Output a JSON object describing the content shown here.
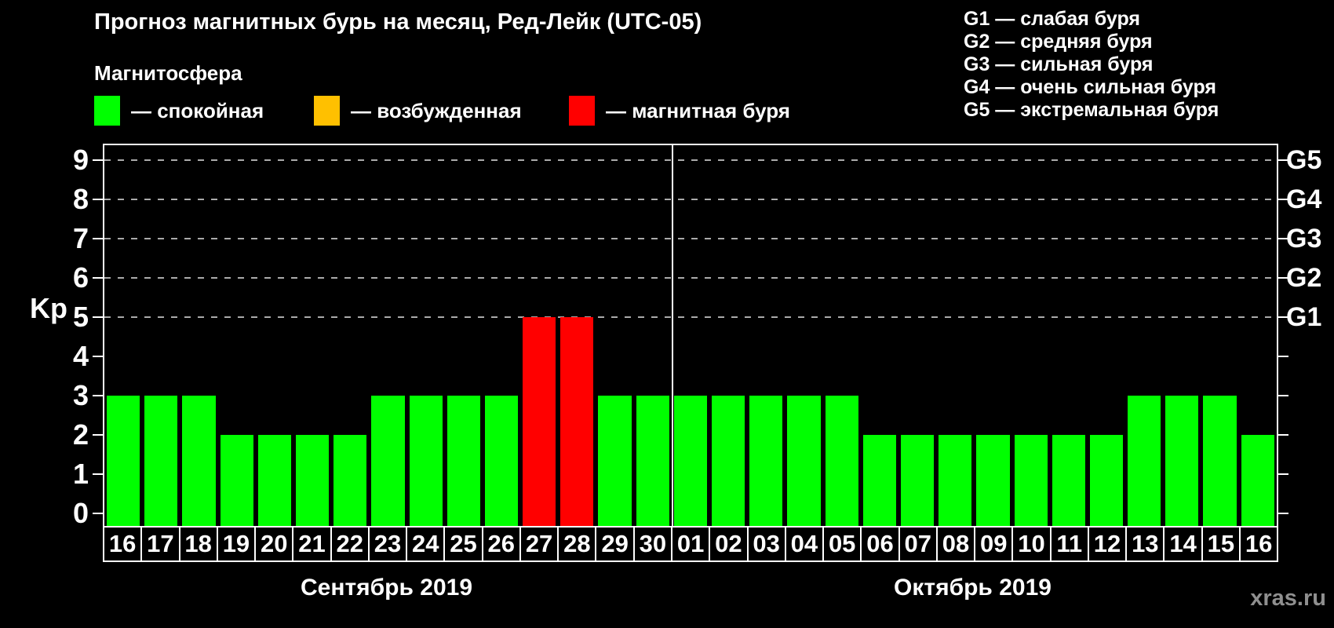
{
  "title": "Прогноз магнитных бурь на месяц, Ред-Лейк (UTC-05)",
  "watermark": "xras.ru",
  "legend": {
    "heading": "Магнитосфера",
    "items": [
      {
        "key": "quiet",
        "label": "— спокойная",
        "color": "#00ff00"
      },
      {
        "key": "excited",
        "label": "— возбужденная",
        "color": "#ffc000"
      },
      {
        "key": "storm",
        "label": "— магнитная буря",
        "color": "#ff0000"
      }
    ]
  },
  "storm_scale": [
    {
      "code": "G1",
      "label": "G1 — слабая буря"
    },
    {
      "code": "G2",
      "label": "G2 — средняя буря"
    },
    {
      "code": "G3",
      "label": "G3 — сильная буря"
    },
    {
      "code": "G4",
      "label": "G4 — очень сильная буря"
    },
    {
      "code": "G5",
      "label": "G5 — экстремальная буря"
    }
  ],
  "chart_data": {
    "type": "bar",
    "title": "Прогноз магнитных бурь на месяц, Ред-Лейк (UTC-05)",
    "ylabel": "Kp",
    "ylim": [
      0,
      9.4
    ],
    "yticks": [
      0,
      1,
      2,
      3,
      4,
      5,
      6,
      7,
      8,
      9
    ],
    "grid": "horizontal dashed at Kp 5-9",
    "right_axis_labels": [
      {
        "value": 5,
        "label": "G1"
      },
      {
        "value": 6,
        "label": "G2"
      },
      {
        "value": 7,
        "label": "G3"
      },
      {
        "value": 8,
        "label": "G4"
      },
      {
        "value": 9,
        "label": "G5"
      }
    ],
    "colors": {
      "quiet": "#00ff00",
      "excited": "#ffc000",
      "storm": "#ff0000"
    },
    "months": [
      {
        "label": "Сентябрь 2019",
        "days": [
          "16",
          "17",
          "18",
          "19",
          "20",
          "21",
          "22",
          "23",
          "24",
          "25",
          "26",
          "27",
          "28",
          "29",
          "30"
        ],
        "values": [
          3,
          3,
          3,
          2,
          2,
          2,
          2,
          3,
          3,
          3,
          3,
          5,
          5,
          3,
          3
        ],
        "status": [
          "quiet",
          "quiet",
          "quiet",
          "quiet",
          "quiet",
          "quiet",
          "quiet",
          "quiet",
          "quiet",
          "quiet",
          "quiet",
          "storm",
          "storm",
          "quiet",
          "quiet"
        ]
      },
      {
        "label": "Октябрь 2019",
        "days": [
          "01",
          "02",
          "03",
          "04",
          "05",
          "06",
          "07",
          "08",
          "09",
          "10",
          "11",
          "12",
          "13",
          "14",
          "15",
          "16"
        ],
        "values": [
          3,
          3,
          3,
          3,
          3,
          2,
          2,
          2,
          2,
          2,
          2,
          2,
          3,
          3,
          3,
          2
        ],
        "status": [
          "quiet",
          "quiet",
          "quiet",
          "quiet",
          "quiet",
          "quiet",
          "quiet",
          "quiet",
          "quiet",
          "quiet",
          "quiet",
          "quiet",
          "quiet",
          "quiet",
          "quiet",
          "quiet"
        ]
      }
    ]
  }
}
